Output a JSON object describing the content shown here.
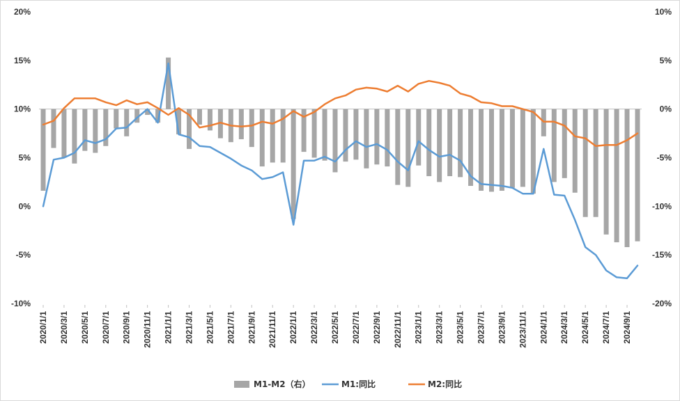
{
  "chart_data": {
    "type": "bar+line",
    "title": "",
    "y_left": {
      "min": -10,
      "max": 20,
      "ticks": [
        "20%",
        "15%",
        "10%",
        "5%",
        "0%",
        "-5%",
        "-10%"
      ]
    },
    "y_right": {
      "min": -20,
      "max": 10,
      "ticks": [
        "10%",
        "5%",
        "0%",
        "-5%",
        "-10%",
        "-15%",
        "-20%"
      ]
    },
    "x_tick_labels": [
      "2020/1/1",
      "2020/3/1",
      "2020/5/1",
      "2020/7/1",
      "2020/9/1",
      "2020/11/1",
      "2021/1/1",
      "2021/3/1",
      "2021/5/1",
      "2021/7/1",
      "2021/9/1",
      "2021/11/1",
      "2022/1/1",
      "2022/3/1",
      "2022/5/1",
      "2022/7/1",
      "2022/9/1",
      "2022/11/1",
      "2023/1/1",
      "2023/3/1",
      "2023/5/1",
      "2023/7/1",
      "2023/9/1",
      "2023/11/1",
      "2024/1/1",
      "2024/3/1",
      "2024/5/1",
      "2024/7/1",
      "2024/9/1"
    ],
    "dates": [
      "2020/1/1",
      "2020/2/1",
      "2020/3/1",
      "2020/4/1",
      "2020/5/1",
      "2020/6/1",
      "2020/7/1",
      "2020/8/1",
      "2020/9/1",
      "2020/10/1",
      "2020/11/1",
      "2020/12/1",
      "2021/1/1",
      "2021/2/1",
      "2021/3/1",
      "2021/4/1",
      "2021/5/1",
      "2021/6/1",
      "2021/7/1",
      "2021/8/1",
      "2021/9/1",
      "2021/10/1",
      "2021/11/1",
      "2021/12/1",
      "2022/1/1",
      "2022/2/1",
      "2022/3/1",
      "2022/4/1",
      "2022/5/1",
      "2022/6/1",
      "2022/7/1",
      "2022/8/1",
      "2022/9/1",
      "2022/10/1",
      "2022/11/1",
      "2022/12/1",
      "2023/1/1",
      "2023/2/1",
      "2023/3/1",
      "2023/4/1",
      "2023/5/1",
      "2023/6/1",
      "2023/7/1",
      "2023/8/1",
      "2023/9/1",
      "2023/10/1",
      "2023/11/1",
      "2023/12/1",
      "2024/1/1",
      "2024/2/1",
      "2024/3/1",
      "2024/4/1",
      "2024/5/1",
      "2024/6/1",
      "2024/7/1",
      "2024/8/1",
      "2024/9/1",
      "2024/10/1"
    ],
    "series": [
      {
        "name": "M1-M2（右）",
        "kind": "bar",
        "axis": "right",
        "color": "#a6a6a6",
        "values": [
          -8.4,
          -4.0,
          -5.0,
          -5.6,
          -4.3,
          -4.5,
          -3.8,
          -2.0,
          -2.8,
          -1.4,
          -0.6,
          -1.4,
          5.3,
          -2.6,
          -4.1,
          -1.6,
          -2.2,
          -3.0,
          -3.4,
          -3.1,
          -3.9,
          -5.9,
          -5.5,
          -5.5,
          -11.3,
          -4.4,
          -5.0,
          -5.3,
          -6.5,
          -5.4,
          -5.2,
          -6.1,
          -5.7,
          -5.9,
          -7.8,
          -8.0,
          -5.8,
          -6.9,
          -7.5,
          -6.9,
          -7.0,
          -7.9,
          -8.4,
          -8.5,
          -8.4,
          -8.1,
          -8.0,
          -8.7,
          -2.8,
          -7.5,
          -7.1,
          -8.6,
          -11.1,
          -11.1,
          -12.9,
          -13.7,
          -14.2,
          -13.6
        ]
      },
      {
        "name": "M1:同比",
        "kind": "line",
        "axis": "left",
        "color": "#5b9bd5",
        "values": [
          0.0,
          4.8,
          5.0,
          5.5,
          6.8,
          6.5,
          6.9,
          8.0,
          8.1,
          9.1,
          10.0,
          8.6,
          14.7,
          7.4,
          7.1,
          6.2,
          6.1,
          5.5,
          4.9,
          4.2,
          3.7,
          2.8,
          3.0,
          3.5,
          -1.9,
          4.7,
          4.7,
          5.1,
          4.6,
          5.8,
          6.7,
          6.1,
          6.4,
          5.8,
          4.6,
          3.7,
          6.7,
          5.8,
          5.1,
          5.3,
          4.7,
          3.1,
          2.3,
          2.2,
          2.1,
          1.9,
          1.3,
          1.3,
          5.9,
          1.2,
          1.1,
          -1.4,
          -4.2,
          -5.0,
          -6.6,
          -7.3,
          -7.4,
          -6.1
        ]
      },
      {
        "name": "M2:同比",
        "kind": "line",
        "axis": "left",
        "color": "#ed7d31",
        "values": [
          8.4,
          8.8,
          10.1,
          11.1,
          11.1,
          11.1,
          10.7,
          10.4,
          10.9,
          10.5,
          10.7,
          10.1,
          9.4,
          10.1,
          9.4,
          8.1,
          8.3,
          8.6,
          8.3,
          8.2,
          8.3,
          8.7,
          8.5,
          9.0,
          9.8,
          9.2,
          9.7,
          10.5,
          11.1,
          11.4,
          12.0,
          12.2,
          12.1,
          11.8,
          12.4,
          11.8,
          12.6,
          12.9,
          12.7,
          12.4,
          11.6,
          11.3,
          10.7,
          10.6,
          10.3,
          10.3,
          10.0,
          9.7,
          8.7,
          8.7,
          8.3,
          7.2,
          7.0,
          6.2,
          6.3,
          6.3,
          6.8,
          7.5
        ]
      }
    ],
    "legend": {
      "position": "bottom"
    },
    "grid": false
  }
}
